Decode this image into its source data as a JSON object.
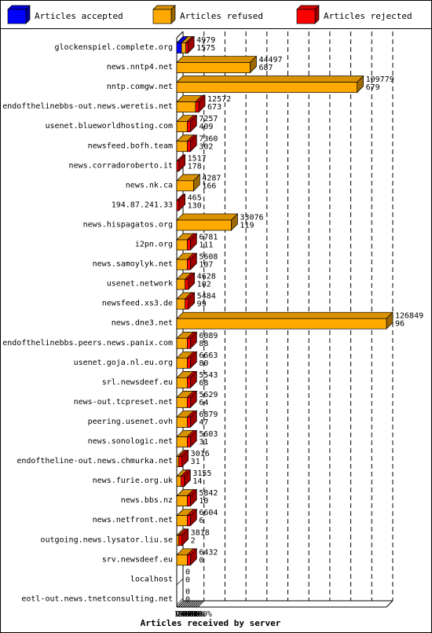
{
  "legend": [
    {
      "label": "Articles accepted",
      "color": "#0000ff"
    },
    {
      "label": "Articles refused",
      "color": "#ffaa00"
    },
    {
      "label": "Articles rejected",
      "color": "#ff0000"
    }
  ],
  "chart_data": {
    "type": "bar",
    "orientation": "horizontal",
    "stacked": true,
    "xlabel": "Articles received by server",
    "xticks": [
      "0%",
      "10%",
      "20%",
      "30%",
      "40%",
      "50%",
      "60%",
      "70%",
      "80%",
      "90%",
      "100%"
    ],
    "xlim": [
      0,
      100
    ],
    "grid": true,
    "legend_position": "top",
    "categories": [
      "glockenspiel.complete.org",
      "news.nntp4.net",
      "nntp.comgw.net",
      "endofthelinebbs-out.news.weretis.net",
      "usenet.blueworldhosting.com",
      "newsfeed.bofh.team",
      "news.corradoroberto.it",
      "news.nk.ca",
      "194.87.241.33",
      "news.hispagatos.org",
      "i2pn.org",
      "news.samoylyk.net",
      "usenet.network",
      "newsfeed.xs3.de",
      "news.dne3.net",
      "endofthelinebbs.peers.news.panix.com",
      "usenet.goja.nl.eu.org",
      "srl.newsdeef.eu",
      "news-out.tcpreset.net",
      "peering.usenet.ovh",
      "news.sonologic.net",
      "endoftheline-out.news.chmurka.net",
      "news.furie.org.uk",
      "news.bbs.nz",
      "news.netfront.net",
      "outgoing.news.lysator.liu.se",
      "srv.newsdeef.eu",
      "localhost",
      "eotl-out.news.tnetconsulting.net"
    ],
    "offered_labels": [
      "4979",
      "44497",
      "109779",
      "12572",
      "7257",
      "7360",
      "1517",
      "4287",
      "465",
      "33076",
      "6781",
      "5608",
      "4628",
      "5484",
      "126849",
      "6089",
      "6663",
      "5543",
      "5629",
      "6879",
      "5603",
      "3016",
      "3155",
      "5842",
      "6604",
      "3818",
      "6432",
      "0",
      "0"
    ],
    "accepted_labels": [
      "1575",
      "687",
      "679",
      "673",
      "409",
      "302",
      "178",
      "166",
      "130",
      "119",
      "111",
      "107",
      "102",
      "99",
      "96",
      "88",
      "80",
      "68",
      "64",
      "47",
      "31",
      "31",
      "14",
      "10",
      "6",
      "2",
      "0",
      "0",
      "0"
    ],
    "series": [
      {
        "name": "Articles accepted",
        "color": "#0000ff",
        "values": [
          2.3,
          0,
          0,
          0,
          0,
          0,
          0,
          0,
          0,
          0,
          0,
          0,
          0,
          0,
          0,
          0,
          0,
          0,
          0,
          0,
          0,
          0,
          0,
          0,
          0,
          0,
          0,
          0,
          0
        ]
      },
      {
        "name": "Articles refused",
        "color": "#ffaa00",
        "values": [
          2,
          35,
          86,
          9,
          5,
          5,
          0,
          8,
          0,
          26,
          5,
          5,
          4,
          4,
          100,
          5,
          5,
          5,
          5,
          5,
          5,
          1,
          2,
          5,
          5,
          1,
          5,
          0,
          0
        ]
      },
      {
        "name": "Articles rejected",
        "color": "#ff0000",
        "values": [
          1,
          0,
          0,
          1.5,
          1.5,
          1.5,
          1,
          0,
          1,
          0,
          1.5,
          1.5,
          1.5,
          1.5,
          0,
          1.5,
          1.5,
          1.5,
          1.5,
          1.5,
          1.5,
          1.5,
          1.5,
          1.5,
          1.5,
          1.5,
          1.5,
          0,
          0
        ]
      }
    ]
  }
}
